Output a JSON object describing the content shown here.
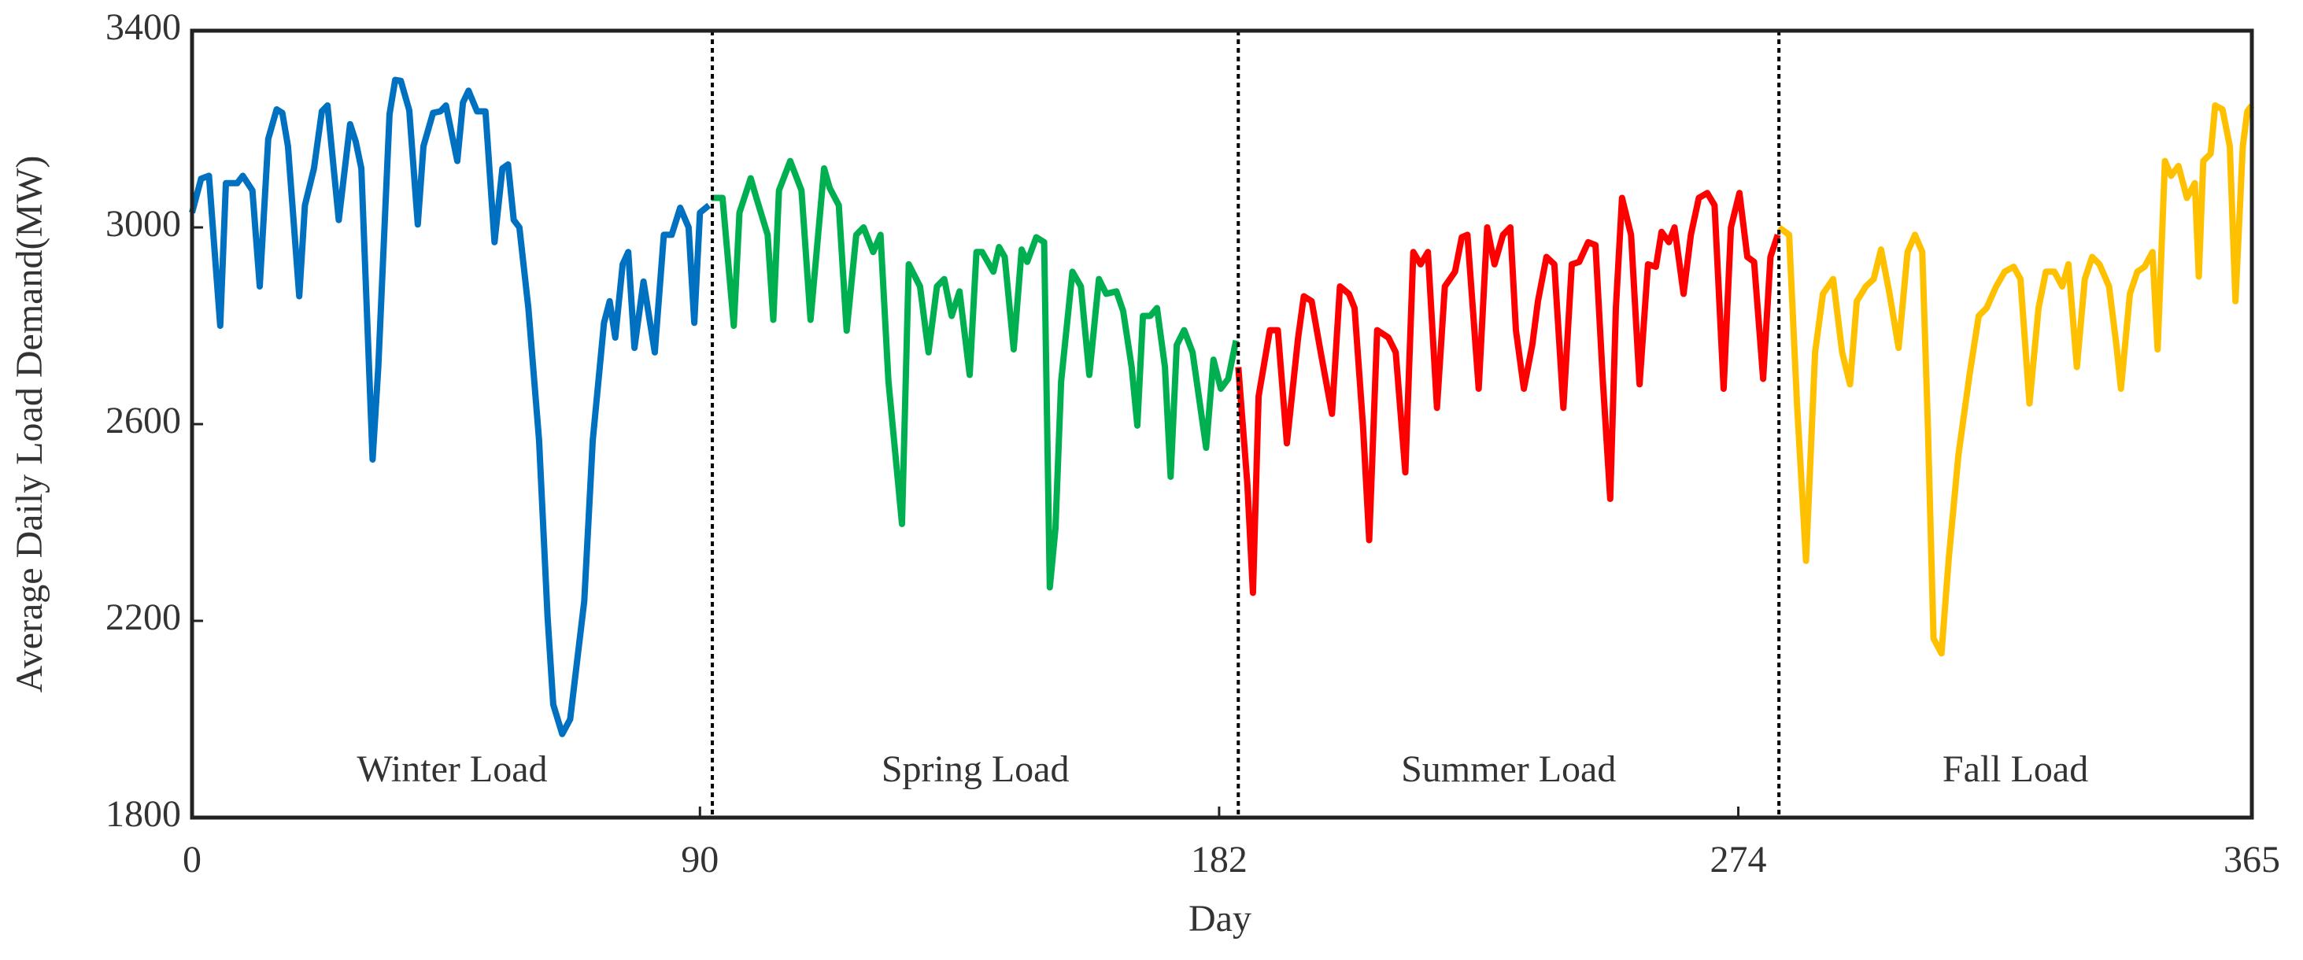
{
  "chart_data": {
    "type": "line",
    "xlabel": "Day",
    "ylabel": "Average Daily Load Demand(MW)",
    "xlim": [
      0,
      365
    ],
    "ylim": [
      1800,
      3400
    ],
    "xticks": [
      0,
      90,
      182,
      274,
      365
    ],
    "yticks": [
      1800,
      2200,
      2600,
      3000,
      3400
    ],
    "dividers": [
      92.2,
      185.4,
      281.2
    ],
    "series": [
      {
        "name": "Winter Load",
        "color": "#0070c0",
        "x": [
          0,
          1.6,
          3,
          5,
          6,
          8,
          9,
          10.7,
          12,
          13.5,
          15,
          16,
          17,
          19,
          20,
          21.6,
          23,
          24,
          26,
          28,
          29,
          30,
          32,
          33,
          35,
          36,
          37,
          38.5,
          40,
          41,
          42.7,
          44,
          45,
          47,
          48,
          49,
          50.5,
          52,
          53.6,
          55,
          56,
          57,
          58,
          59.6,
          61.5,
          63,
          64,
          65.6,
          67,
          69.5,
          71,
          73,
          74,
          75,
          76.3,
          77.3,
          78.4,
          80,
          82,
          83.6,
          85,
          86.5,
          88,
          89,
          90,
          91.6
        ],
        "values": [
          3030,
          3099,
          3105,
          2800,
          3090,
          3090,
          3105,
          3075,
          2880,
          3180,
          3240,
          3233,
          3165,
          2860,
          3045,
          3120,
          3236,
          3248,
          3015,
          3210,
          3175,
          3120,
          2528,
          2715,
          3230,
          3300,
          3298,
          3238,
          3006,
          3165,
          3233,
          3236,
          3248,
          3135,
          3254,
          3278,
          3236,
          3236,
          2970,
          3120,
          3128,
          3015,
          3000,
          2836,
          2567,
          2208,
          2030,
          1970,
          2000,
          2240,
          2567,
          2806,
          2850,
          2776,
          2925,
          2950,
          2755,
          2890,
          2746,
          2985,
          2985,
          3040,
          3000,
          2806,
          3030,
          3045
        ]
      },
      {
        "name": "Spring Load",
        "color": "#00b050",
        "x": [
          92,
          94,
          96,
          97,
          99,
          100,
          102,
          103,
          104,
          106,
          108,
          109.6,
          112,
          113,
          114.6,
          116,
          117.7,
          119,
          120.7,
          122,
          123.4,
          125.8,
          127,
          129,
          130.5,
          132,
          133.3,
          134.6,
          136,
          137.8,
          139,
          140,
          142,
          143,
          144,
          145.6,
          147,
          148,
          149.6,
          151,
          152,
          153,
          154,
          156,
          157.5,
          159,
          160.7,
          162,
          163.8,
          165,
          166.5,
          167.5,
          168.5,
          169.8,
          171,
          172.4,
          173.4,
          174.5,
          175.8,
          177.3,
          178.4,
          179.7,
          181,
          182.3,
          183.6,
          185
        ],
        "values": [
          3060,
          3060,
          2800,
          3030,
          3100,
          3060,
          2985,
          2812,
          3075,
          3135,
          3075,
          2812,
          3120,
          3080,
          3045,
          2790,
          2985,
          3000,
          2950,
          2985,
          2687,
          2397,
          2925,
          2880,
          2746,
          2880,
          2895,
          2820,
          2870,
          2700,
          2950,
          2950,
          2910,
          2960,
          2940,
          2752,
          2955,
          2930,
          2980,
          2970,
          2268,
          2388,
          2687,
          2910,
          2880,
          2700,
          2895,
          2865,
          2870,
          2830,
          2716,
          2597,
          2820,
          2820,
          2836,
          2716,
          2493,
          2761,
          2791,
          2746,
          2657,
          2552,
          2731,
          2672,
          2692,
          2770
        ]
      },
      {
        "name": "Summer Load",
        "color": "#ff0000",
        "x": [
          185.4,
          187,
          188,
          189,
          191,
          192.4,
          194,
          196,
          197,
          198.4,
          200,
          202,
          203.4,
          205,
          206,
          207.5,
          208.6,
          210,
          212,
          213.3,
          215,
          216.4,
          217.7,
          219,
          220.6,
          222,
          223.8,
          225,
          226,
          228,
          229.5,
          230.8,
          232.3,
          233.6,
          234.6,
          236,
          237.5,
          238.5,
          240,
          241.4,
          243,
          244.5,
          245.8,
          247.4,
          248.7,
          250,
          251.3,
          252.3,
          253.4,
          255,
          256.5,
          258,
          259.4,
          260.4,
          261.7,
          262.7,
          264.3,
          265.6,
          267,
          268.5,
          269.8,
          271.4,
          272.7,
          274.2,
          275.6,
          276.8,
          278.4,
          279.7,
          281
        ],
        "values": [
          2716,
          2478,
          2257,
          2657,
          2791,
          2791,
          2561,
          2776,
          2860,
          2850,
          2746,
          2621,
          2880,
          2865,
          2836,
          2597,
          2364,
          2791,
          2776,
          2746,
          2502,
          2950,
          2925,
          2950,
          2633,
          2880,
          2910,
          2980,
          2985,
          2672,
          3000,
          2925,
          2985,
          3000,
          2791,
          2672,
          2761,
          2850,
          2940,
          2925,
          2633,
          2925,
          2930,
          2970,
          2964,
          2687,
          2448,
          2836,
          3060,
          2985,
          2681,
          2925,
          2920,
          2991,
          2970,
          3000,
          2865,
          2985,
          3060,
          3070,
          3045,
          2672,
          3000,
          3070,
          2940,
          2930,
          2692,
          2940,
          2985
        ]
      },
      {
        "name": "Fall Load",
        "color": "#ffc000",
        "x": [
          281.2,
          283,
          284.4,
          286,
          287.6,
          289,
          290.8,
          292.4,
          293.8,
          295,
          296.6,
          298,
          299.3,
          300.8,
          302.4,
          304,
          305.3,
          306.6,
          307.6,
          308.6,
          310,
          311.3,
          313,
          315,
          316.6,
          318,
          319.7,
          321.2,
          322.8,
          324,
          325.6,
          327.2,
          328.5,
          330,
          331.4,
          332.5,
          334,
          335.4,
          336.7,
          338,
          339.7,
          341,
          341.8,
          343.4,
          344.7,
          346,
          347.4,
          348.3,
          349.6,
          350.7,
          352,
          353.5,
          354.9,
          355.6,
          356.4,
          357.7,
          358.5,
          359.8,
          361.1,
          362.1,
          363.4,
          364.2,
          365
        ],
        "values": [
          3000,
          2985,
          2642,
          2322,
          2746,
          2865,
          2895,
          2746,
          2681,
          2850,
          2880,
          2895,
          2955,
          2865,
          2755,
          2950,
          2985,
          2950,
          2597,
          2164,
          2134,
          2328,
          2537,
          2702,
          2820,
          2836,
          2880,
          2910,
          2920,
          2895,
          2642,
          2836,
          2910,
          2910,
          2880,
          2925,
          2716,
          2895,
          2940,
          2925,
          2880,
          2761,
          2672,
          2865,
          2910,
          2920,
          2950,
          2752,
          3135,
          3105,
          3125,
          3060,
          3090,
          2900,
          3135,
          3150,
          3248,
          3240,
          3165,
          2850,
          3165,
          3236,
          3248
        ]
      }
    ]
  }
}
